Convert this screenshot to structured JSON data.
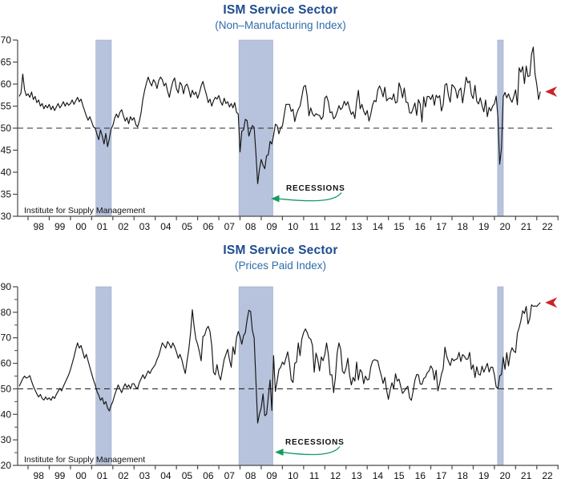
{
  "colors": {
    "title": "#1c4b8e",
    "subtitle": "#2d6da8",
    "recession_band": "#b7c3dc",
    "recession_band_edge": "#9aaac9",
    "series_line": "#141414",
    "reference_dash": "#2b2b2b",
    "axis": "#4a4a4a",
    "recessions_annotation": "#169b62",
    "latest_value_arrow": "#cc2229"
  },
  "chart_data": [
    {
      "type": "line",
      "title": "ISM Service Sector",
      "subtitle": "(Non–Manufacturing Index)",
      "source_note": "Institute for Supply Management",
      "recessions_label": "RECESSIONS",
      "xlabel": "",
      "ylabel": "",
      "ylim": [
        30,
        70
      ],
      "yticks": [
        30,
        35,
        40,
        45,
        50,
        55,
        60,
        65,
        70
      ],
      "minor_yticks": [],
      "reference_line": 50,
      "grid": "off",
      "x_first_tick_year": 1998,
      "x_last_tick_year": 2023,
      "xtick_labels": [
        "98",
        "99",
        "00",
        "01",
        "02",
        "03",
        "04",
        "05",
        "06",
        "07",
        "08",
        "09",
        "10",
        "11",
        "12",
        "13",
        "14",
        "15",
        "16",
        "17",
        "18",
        "19",
        "20",
        "21",
        "22"
      ],
      "recession_bands_years": [
        [
          2001.2,
          2001.93
        ],
        [
          2007.95,
          2009.55
        ],
        [
          2020.15,
          2020.42
        ]
      ],
      "series": [
        {
          "name": "ISM Non-Manufacturing Index",
          "frequency": "monthly",
          "start_year_fraction": 1997.5833,
          "values": [
            57.2,
            58.0,
            62.3,
            58.8,
            57.4,
            57.8,
            57.0,
            58.2,
            56.5,
            57.2,
            55.8,
            56.4,
            55.0,
            55.6,
            54.4,
            55.2,
            54.6,
            55.4,
            54.2,
            55.0,
            54.0,
            54.8,
            55.6,
            54.6,
            55.2,
            56.0,
            55.0,
            55.8,
            55.2,
            55.6,
            56.4,
            55.4,
            56.2,
            57.0,
            56.0,
            56.6,
            55.2,
            54.0,
            52.8,
            51.8,
            52.6,
            51.5,
            50.3,
            50.0,
            48.6,
            47.4,
            49.6,
            48.2,
            46.4,
            48.8,
            45.8,
            47.6,
            49.8,
            50.6,
            52.2,
            53.2,
            52.4,
            53.6,
            54.2,
            52.8,
            51.6,
            52.4,
            51.0,
            52.6,
            51.8,
            52.4,
            50.8,
            50.3,
            51.6,
            53.6,
            56.6,
            58.6,
            60.2,
            61.6,
            60.4,
            59.6,
            61.0,
            60.4,
            59.0,
            60.8,
            61.6,
            61.0,
            59.6,
            60.2,
            58.4,
            57.0,
            59.0,
            60.6,
            61.4,
            59.0,
            58.0,
            60.4,
            59.8,
            57.8,
            59.6,
            60.0,
            58.8,
            57.0,
            58.6,
            57.6,
            58.2,
            56.8,
            58.0,
            59.6,
            60.6,
            59.0,
            57.6,
            55.8,
            56.6,
            55.0,
            56.2,
            57.0,
            56.6,
            57.4,
            56.0,
            55.2,
            56.8,
            55.6,
            56.0,
            54.8,
            55.6,
            54.6,
            55.8,
            53.6,
            53.2,
            44.6,
            49.3,
            49.6,
            52.0,
            51.7,
            48.2,
            49.5,
            50.6,
            50.2,
            44.4,
            37.4,
            40.6,
            42.9,
            41.6,
            40.8,
            43.7,
            44.0,
            47.0,
            46.4,
            48.4,
            50.9,
            50.6,
            48.7,
            50.1,
            50.5,
            53.0,
            55.4,
            55.4,
            55.4,
            53.8,
            54.3,
            51.5,
            53.2,
            54.3,
            55.0,
            57.1,
            59.4,
            59.7,
            57.3,
            52.8,
            54.6,
            53.3,
            52.7,
            53.3,
            53.0,
            52.9,
            52.0,
            52.6,
            56.8,
            57.3,
            56.0,
            53.5,
            53.7,
            52.1,
            52.6,
            53.7,
            55.1,
            54.2,
            54.7,
            56.1,
            55.2,
            56.0,
            54.4,
            53.1,
            53.7,
            52.2,
            56.0,
            58.6,
            54.4,
            55.4,
            53.9,
            53.0,
            54.0,
            51.6,
            53.1,
            55.2,
            56.3,
            56.0,
            58.7,
            59.6,
            58.6,
            57.1,
            59.3,
            56.2,
            56.7,
            56.9,
            56.5,
            57.8,
            55.7,
            56.0,
            60.3,
            59.0,
            56.9,
            59.1,
            55.9,
            55.8,
            53.5,
            53.4,
            54.5,
            55.7,
            52.9,
            56.5,
            55.5,
            51.4,
            57.1,
            54.8,
            57.2,
            57.2,
            56.5,
            57.6,
            55.2,
            57.5,
            56.9,
            57.4,
            53.9,
            55.3,
            59.8,
            60.1,
            57.4,
            55.9,
            59.9,
            59.5,
            58.8,
            56.8,
            58.6,
            59.1,
            55.7,
            58.5,
            61.6,
            60.3,
            60.7,
            57.6,
            56.7,
            59.7,
            56.1,
            55.5,
            56.9,
            55.1,
            53.7,
            56.4,
            52.6,
            54.7,
            53.9,
            55.0,
            55.5,
            57.3,
            52.5,
            41.8,
            45.4,
            57.1,
            58.1,
            56.9,
            57.8,
            56.6,
            55.9,
            57.2,
            58.7,
            55.3,
            63.7,
            62.7,
            64.0,
            60.1,
            64.1,
            61.7,
            61.9,
            66.7,
            68.4,
            62.3,
            59.9,
            56.5,
            58.3
          ]
        }
      ]
    },
    {
      "type": "line",
      "title": "ISM Service Sector",
      "subtitle": "(Prices Paid Index)",
      "source_note": "Institute for Supply Management",
      "recessions_label": "RECESSIONS",
      "xlabel": "",
      "ylabel": "",
      "ylim": [
        20,
        90
      ],
      "yticks": [
        20,
        30,
        40,
        50,
        60,
        70,
        80,
        90
      ],
      "minor_yticks": [
        25,
        35,
        45,
        55,
        65,
        75,
        85
      ],
      "reference_line": 50,
      "grid": "off",
      "x_first_tick_year": 1998,
      "x_last_tick_year": 2023,
      "xtick_labels": [
        "98",
        "99",
        "00",
        "01",
        "02",
        "03",
        "04",
        "05",
        "06",
        "07",
        "08",
        "09",
        "10",
        "11",
        "12",
        "13",
        "14",
        "15",
        "16",
        "17",
        "18",
        "19",
        "20",
        "21",
        "22"
      ],
      "recession_bands_years": [
        [
          2001.2,
          2001.93
        ],
        [
          2007.95,
          2009.55
        ],
        [
          2020.15,
          2020.42
        ]
      ],
      "series": [
        {
          "name": "ISM Services Prices Paid Index",
          "frequency": "monthly",
          "start_year_fraction": 1997.5833,
          "values": [
            51.0,
            52.5,
            54.0,
            55.0,
            54.2,
            54.5,
            55.2,
            53.0,
            51.0,
            49.5,
            48.0,
            46.8,
            47.8,
            46.2,
            45.6,
            46.8,
            45.8,
            46.5,
            45.5,
            47.0,
            46.2,
            47.8,
            49.0,
            50.2,
            49.2,
            51.0,
            52.5,
            54.0,
            55.5,
            57.5,
            60.0,
            62.5,
            65.5,
            68.0,
            66.0,
            67.0,
            64.5,
            62.0,
            63.5,
            61.0,
            58.5,
            56.0,
            53.5,
            51.5,
            49.0,
            47.5,
            45.5,
            46.5,
            44.0,
            45.0,
            42.5,
            41.3,
            43.5,
            45.0,
            47.5,
            49.5,
            51.5,
            50.0,
            48.5,
            50.5,
            52.0,
            50.5,
            51.5,
            50.0,
            52.0,
            52.0,
            50.5,
            50.2,
            52.5,
            54.0,
            55.5,
            54.0,
            55.5,
            57.0,
            56.0,
            57.5,
            58.5,
            59.5,
            61.5,
            63.0,
            65.5,
            68.0,
            67.0,
            66.0,
            68.5,
            67.5,
            66.0,
            68.0,
            66.5,
            64.5,
            62.0,
            63.5,
            61.5,
            58.5,
            56.0,
            61.0,
            65.5,
            72.0,
            81.0,
            74.5,
            69.5,
            67.5,
            64.5,
            61.0,
            70.5,
            71.0,
            73.5,
            74.5,
            72.5,
            67.0,
            56.5,
            55.5,
            59.5,
            55.5,
            53.5,
            57.5,
            61.5,
            63.5,
            65.5,
            61.5,
            58.5,
            66.5,
            63.5,
            70.0,
            72.5,
            70.5,
            67.5,
            70.8,
            72.0,
            77.0,
            80.8,
            80.3,
            72.9,
            70.0,
            53.4,
            36.6,
            40.1,
            42.5,
            48.0,
            39.5,
            40.0,
            47.0,
            53.5,
            41.5,
            63.0,
            49.0,
            53.0,
            57.5,
            58.5,
            60.5,
            59.5,
            62.0,
            64.5,
            60.0,
            53.5,
            52.5,
            60.0,
            60.5,
            68.0,
            63.0,
            69.5,
            72.0,
            73.5,
            72.0,
            70.0,
            69.5,
            67.0,
            56.5,
            64.0,
            61.5,
            57.0,
            62.5,
            61.0,
            63.5,
            68.0,
            63.5,
            55.5,
            55.5,
            48.5,
            54.5,
            64.0,
            68.0,
            65.5,
            57.0,
            56.0,
            58.0,
            62.0,
            55.5,
            51.5,
            54.5,
            53.0,
            60.5,
            53.5,
            57.5,
            56.5,
            52.0,
            55.0,
            53.5,
            53.7,
            58.5,
            60.8,
            61.4,
            61.2,
            60.9,
            57.7,
            55.2,
            52.1,
            54.5,
            49.5,
            45.9,
            49.7,
            52.4,
            50.1,
            55.9,
            53.0,
            53.8,
            50.8,
            48.2,
            49.1,
            50.3,
            51.0,
            46.4,
            45.5,
            49.1,
            53.4,
            55.6,
            55.5,
            51.9,
            51.8,
            54.0,
            54.6,
            56.3,
            57.0,
            59.0,
            57.7,
            53.5,
            57.3,
            49.2,
            52.1,
            55.7,
            57.9,
            66.3,
            62.7,
            60.8,
            59.1,
            61.9,
            61.0,
            61.5,
            61.8,
            64.3,
            60.7,
            63.4,
            62.8,
            61.6,
            61.7,
            64.3,
            57.6,
            59.4,
            54.4,
            58.7,
            55.7,
            55.4,
            58.9,
            56.5,
            58.2,
            60.0,
            56.6,
            58.5,
            58.5,
            55.5,
            50.8,
            50.0,
            55.1,
            55.6,
            62.4,
            57.6,
            64.2,
            59.0,
            63.9,
            66.1,
            64.8,
            64.2,
            71.8,
            74.0,
            76.8,
            80.6,
            79.5,
            82.3,
            75.4,
            77.5,
            82.9,
            82.3,
            82.5,
            82.3,
            83.1,
            83.8
          ]
        }
      ]
    }
  ]
}
